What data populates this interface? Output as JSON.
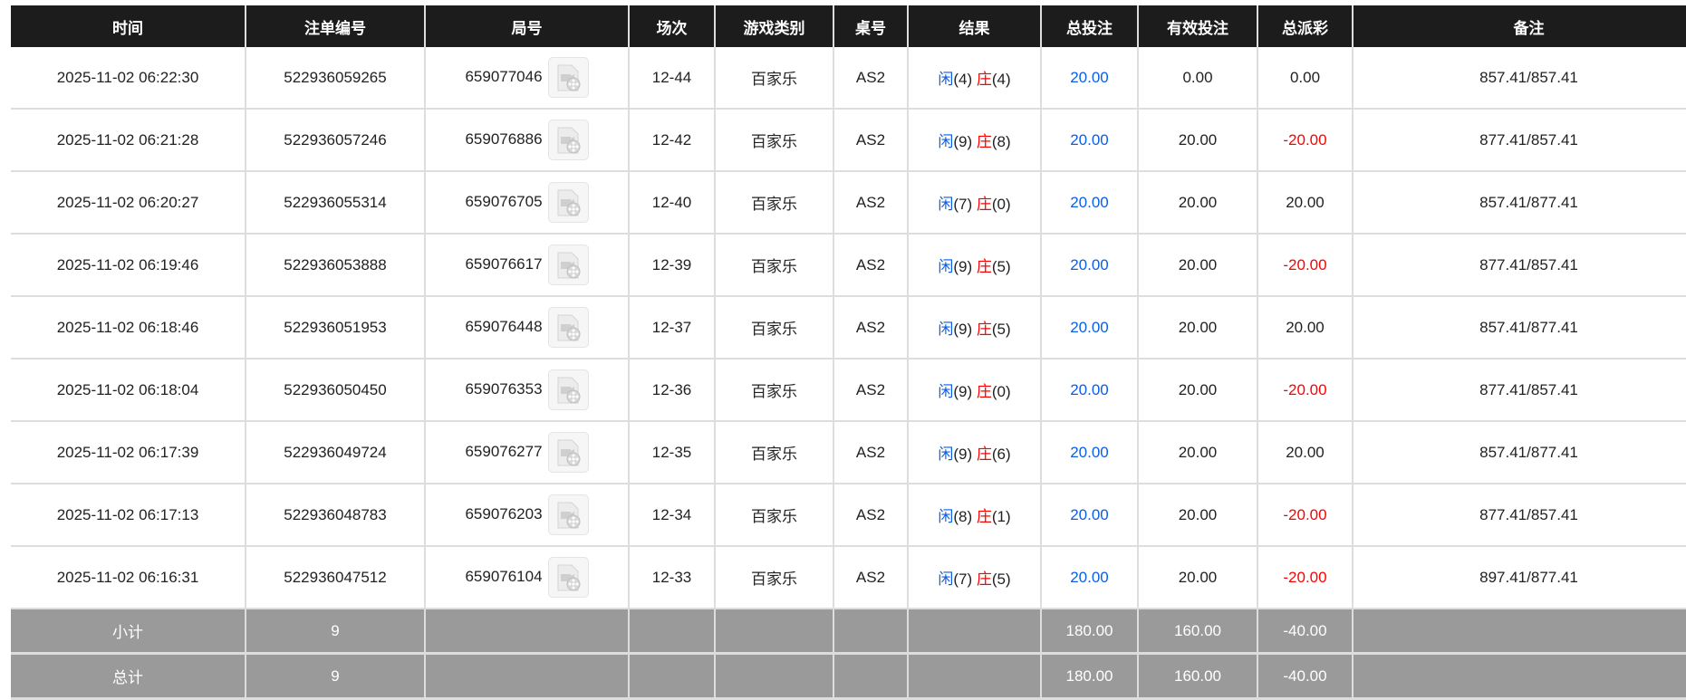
{
  "headers": [
    "时间",
    "注单编号",
    "局号",
    "场次",
    "游戏类别",
    "桌号",
    "结果",
    "总投注",
    "有效投注",
    "总派彩",
    "备注"
  ],
  "rows": [
    {
      "time": "2025-11-02 06:22:30",
      "bet_id": "522936059265",
      "round": "659077046",
      "game_no": "12-44",
      "game": "百家乐",
      "table": "AS2",
      "player": "闲",
      "player_pts": "(4)",
      "banker": "庄",
      "banker_pts": "(4)",
      "total": "20.00",
      "valid": "0.00",
      "payout": "0.00",
      "payout_neg": false,
      "note": "857.41/857.41"
    },
    {
      "time": "2025-11-02 06:21:28",
      "bet_id": "522936057246",
      "round": "659076886",
      "game_no": "12-42",
      "game": "百家乐",
      "table": "AS2",
      "player": "闲",
      "player_pts": "(9)",
      "banker": "庄",
      "banker_pts": "(8)",
      "total": "20.00",
      "valid": "20.00",
      "payout": "-20.00",
      "payout_neg": true,
      "note": "877.41/857.41"
    },
    {
      "time": "2025-11-02 06:20:27",
      "bet_id": "522936055314",
      "round": "659076705",
      "game_no": "12-40",
      "game": "百家乐",
      "table": "AS2",
      "player": "闲",
      "player_pts": "(7)",
      "banker": "庄",
      "banker_pts": "(0)",
      "total": "20.00",
      "valid": "20.00",
      "payout": "20.00",
      "payout_neg": false,
      "note": "857.41/877.41"
    },
    {
      "time": "2025-11-02 06:19:46",
      "bet_id": "522936053888",
      "round": "659076617",
      "game_no": "12-39",
      "game": "百家乐",
      "table": "AS2",
      "player": "闲",
      "player_pts": "(9)",
      "banker": "庄",
      "banker_pts": "(5)",
      "total": "20.00",
      "valid": "20.00",
      "payout": "-20.00",
      "payout_neg": true,
      "note": "877.41/857.41"
    },
    {
      "time": "2025-11-02 06:18:46",
      "bet_id": "522936051953",
      "round": "659076448",
      "game_no": "12-37",
      "game": "百家乐",
      "table": "AS2",
      "player": "闲",
      "player_pts": "(9)",
      "banker": "庄",
      "banker_pts": "(5)",
      "total": "20.00",
      "valid": "20.00",
      "payout": "20.00",
      "payout_neg": false,
      "note": "857.41/877.41"
    },
    {
      "time": "2025-11-02 06:18:04",
      "bet_id": "522936050450",
      "round": "659076353",
      "game_no": "12-36",
      "game": "百家乐",
      "table": "AS2",
      "player": "闲",
      "player_pts": "(9)",
      "banker": "庄",
      "banker_pts": "(0)",
      "total": "20.00",
      "valid": "20.00",
      "payout": "-20.00",
      "payout_neg": true,
      "note": "877.41/857.41"
    },
    {
      "time": "2025-11-02 06:17:39",
      "bet_id": "522936049724",
      "round": "659076277",
      "game_no": "12-35",
      "game": "百家乐",
      "table": "AS2",
      "player": "闲",
      "player_pts": "(9)",
      "banker": "庄",
      "banker_pts": "(6)",
      "total": "20.00",
      "valid": "20.00",
      "payout": "20.00",
      "payout_neg": false,
      "note": "857.41/877.41"
    },
    {
      "time": "2025-11-02 06:17:13",
      "bet_id": "522936048783",
      "round": "659076203",
      "game_no": "12-34",
      "game": "百家乐",
      "table": "AS2",
      "player": "闲",
      "player_pts": "(8)",
      "banker": "庄",
      "banker_pts": "(1)",
      "total": "20.00",
      "valid": "20.00",
      "payout": "-20.00",
      "payout_neg": true,
      "note": "877.41/857.41"
    },
    {
      "time": "2025-11-02 06:16:31",
      "bet_id": "522936047512",
      "round": "659076104",
      "game_no": "12-33",
      "game": "百家乐",
      "table": "AS2",
      "player": "闲",
      "player_pts": "(7)",
      "banker": "庄",
      "banker_pts": "(5)",
      "total": "20.00",
      "valid": "20.00",
      "payout": "-20.00",
      "payout_neg": true,
      "note": "897.41/877.41"
    }
  ],
  "summary": [
    {
      "label": "小计",
      "count": "9",
      "total": "180.00",
      "valid": "160.00",
      "payout": "-40.00"
    },
    {
      "label": "总计",
      "count": "9",
      "total": "180.00",
      "valid": "160.00",
      "payout": "-40.00"
    }
  ],
  "icons": {
    "replay": "video-file-icon"
  },
  "colors": {
    "header_bg": "#1c1c1c",
    "player": "#0a5ee8",
    "banker": "#ff0000",
    "negative": "#ff0000",
    "summary_bg": "#9a9a9a"
  }
}
